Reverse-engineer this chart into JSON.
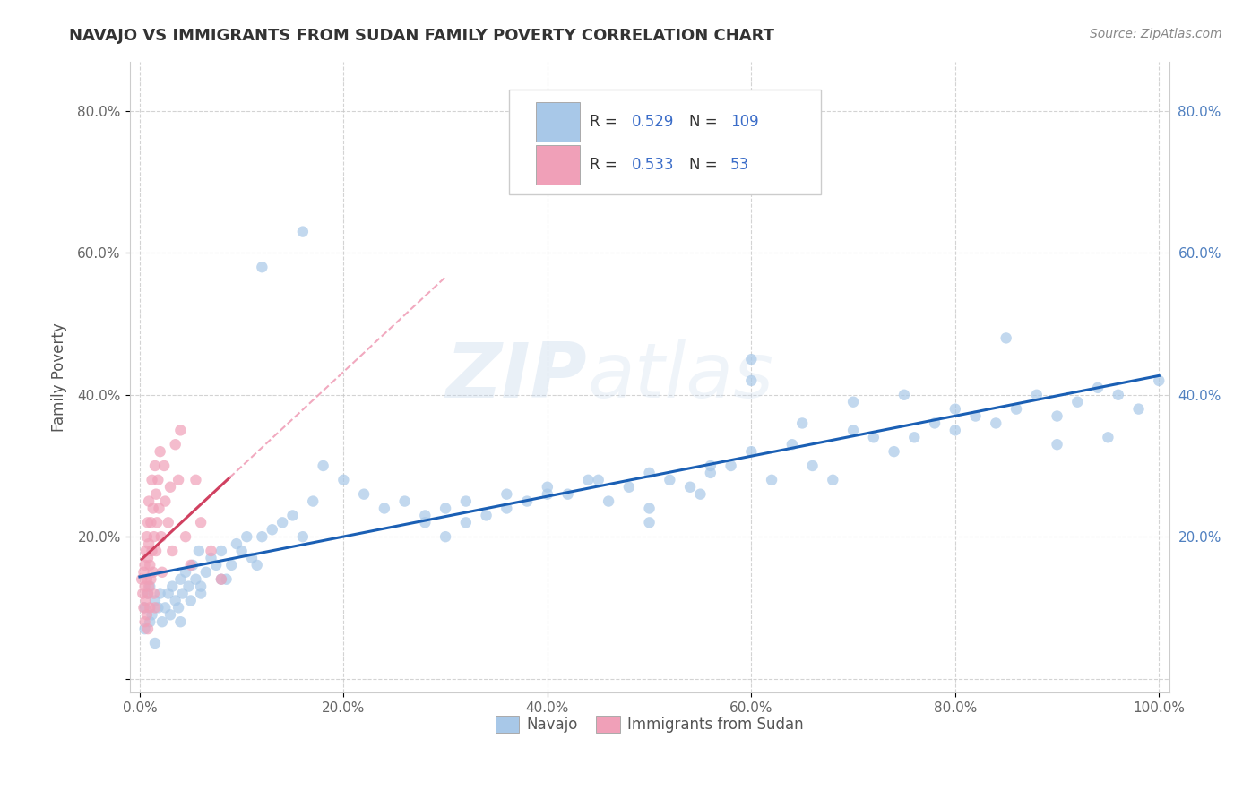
{
  "title": "NAVAJO VS IMMIGRANTS FROM SUDAN FAMILY POVERTY CORRELATION CHART",
  "source_text": "Source: ZipAtlas.com",
  "ylabel": "Family Poverty",
  "xlabel": "",
  "bg_color": "#ffffff",
  "grid_color": "#c8c8c8",
  "watermark_zip": "ZIP",
  "watermark_atlas": "atlas",
  "navajo_color": "#a8c8e8",
  "sudan_color": "#f0a0b8",
  "navajo_line_color": "#1a5fb4",
  "sudan_line_color": "#d04060",
  "sudan_dash_color": "#f0a0b8",
  "navajo_R": 0.529,
  "navajo_N": 109,
  "sudan_R": 0.533,
  "sudan_N": 53,
  "xlim": [
    -0.01,
    1.01
  ],
  "ylim": [
    -0.02,
    0.87
  ],
  "x_ticks": [
    0.0,
    0.2,
    0.4,
    0.6,
    0.8,
    1.0
  ],
  "x_tick_labels": [
    "0.0%",
    "20.0%",
    "40.0%",
    "60.0%",
    "80.0%",
    "100.0%"
  ],
  "y_ticks": [
    0.0,
    0.2,
    0.4,
    0.6,
    0.8
  ],
  "y_tick_labels_left": [
    "",
    "20.0%",
    "40.0%",
    "60.0%",
    "80.0%"
  ],
  "y_tick_labels_right": [
    "",
    "20.0%",
    "40.0%",
    "60.0%",
    "80.0%"
  ],
  "navajo_x": [
    0.005,
    0.005,
    0.008,
    0.01,
    0.01,
    0.012,
    0.015,
    0.015,
    0.018,
    0.02,
    0.022,
    0.025,
    0.028,
    0.03,
    0.032,
    0.035,
    0.038,
    0.04,
    0.042,
    0.045,
    0.048,
    0.05,
    0.052,
    0.055,
    0.058,
    0.06,
    0.065,
    0.07,
    0.075,
    0.08,
    0.085,
    0.09,
    0.095,
    0.1,
    0.105,
    0.11,
    0.115,
    0.12,
    0.13,
    0.14,
    0.15,
    0.16,
    0.17,
    0.18,
    0.2,
    0.22,
    0.24,
    0.26,
    0.28,
    0.3,
    0.32,
    0.34,
    0.36,
    0.38,
    0.4,
    0.42,
    0.44,
    0.46,
    0.48,
    0.5,
    0.52,
    0.54,
    0.56,
    0.58,
    0.6,
    0.62,
    0.64,
    0.66,
    0.68,
    0.7,
    0.72,
    0.74,
    0.76,
    0.78,
    0.8,
    0.82,
    0.84,
    0.86,
    0.88,
    0.9,
    0.92,
    0.94,
    0.96,
    0.98,
    1.0,
    0.55,
    0.6,
    0.65,
    0.7,
    0.75,
    0.8,
    0.85,
    0.9,
    0.95,
    0.28,
    0.3,
    0.32,
    0.36,
    0.4,
    0.45,
    0.5,
    0.56,
    0.6,
    0.16,
    0.12,
    0.08,
    0.06,
    0.04,
    0.5
  ],
  "navajo_y": [
    0.1,
    0.07,
    0.12,
    0.08,
    0.13,
    0.09,
    0.11,
    0.05,
    0.1,
    0.12,
    0.08,
    0.1,
    0.12,
    0.09,
    0.13,
    0.11,
    0.1,
    0.14,
    0.12,
    0.15,
    0.13,
    0.11,
    0.16,
    0.14,
    0.18,
    0.13,
    0.15,
    0.17,
    0.16,
    0.18,
    0.14,
    0.16,
    0.19,
    0.18,
    0.2,
    0.17,
    0.16,
    0.2,
    0.21,
    0.22,
    0.23,
    0.2,
    0.25,
    0.3,
    0.28,
    0.26,
    0.24,
    0.25,
    0.23,
    0.24,
    0.25,
    0.23,
    0.26,
    0.25,
    0.27,
    0.26,
    0.28,
    0.25,
    0.27,
    0.29,
    0.28,
    0.27,
    0.29,
    0.3,
    0.32,
    0.28,
    0.33,
    0.3,
    0.28,
    0.35,
    0.34,
    0.32,
    0.34,
    0.36,
    0.38,
    0.37,
    0.36,
    0.38,
    0.4,
    0.37,
    0.39,
    0.41,
    0.4,
    0.38,
    0.42,
    0.26,
    0.42,
    0.36,
    0.39,
    0.4,
    0.35,
    0.48,
    0.33,
    0.34,
    0.22,
    0.2,
    0.22,
    0.24,
    0.26,
    0.28,
    0.24,
    0.3,
    0.45,
    0.63,
    0.58,
    0.14,
    0.12,
    0.08,
    0.22
  ],
  "sudan_x": [
    0.002,
    0.003,
    0.004,
    0.004,
    0.005,
    0.005,
    0.005,
    0.006,
    0.006,
    0.007,
    0.007,
    0.007,
    0.008,
    0.008,
    0.008,
    0.008,
    0.009,
    0.009,
    0.009,
    0.01,
    0.01,
    0.011,
    0.011,
    0.012,
    0.012,
    0.013,
    0.013,
    0.014,
    0.014,
    0.015,
    0.015,
    0.016,
    0.016,
    0.017,
    0.018,
    0.019,
    0.02,
    0.021,
    0.022,
    0.024,
    0.025,
    0.028,
    0.03,
    0.032,
    0.035,
    0.038,
    0.04,
    0.045,
    0.05,
    0.055,
    0.06,
    0.07,
    0.08
  ],
  "sudan_y": [
    0.14,
    0.12,
    0.15,
    0.1,
    0.13,
    0.08,
    0.16,
    0.11,
    0.18,
    0.09,
    0.14,
    0.2,
    0.12,
    0.17,
    0.22,
    0.07,
    0.13,
    0.19,
    0.25,
    0.1,
    0.16,
    0.22,
    0.14,
    0.18,
    0.28,
    0.15,
    0.24,
    0.12,
    0.2,
    0.3,
    0.1,
    0.18,
    0.26,
    0.22,
    0.28,
    0.24,
    0.32,
    0.2,
    0.15,
    0.3,
    0.25,
    0.22,
    0.27,
    0.18,
    0.33,
    0.28,
    0.35,
    0.2,
    0.16,
    0.28,
    0.22,
    0.18,
    0.14
  ],
  "legend_box_color": "#ffffff",
  "legend_border_color": "#cccccc",
  "right_tick_color": "#5080c0",
  "left_tick_color": "#666666",
  "title_color": "#333333",
  "title_fontsize": 13,
  "source_fontsize": 10,
  "marker_size": 80,
  "marker_alpha": 0.7
}
